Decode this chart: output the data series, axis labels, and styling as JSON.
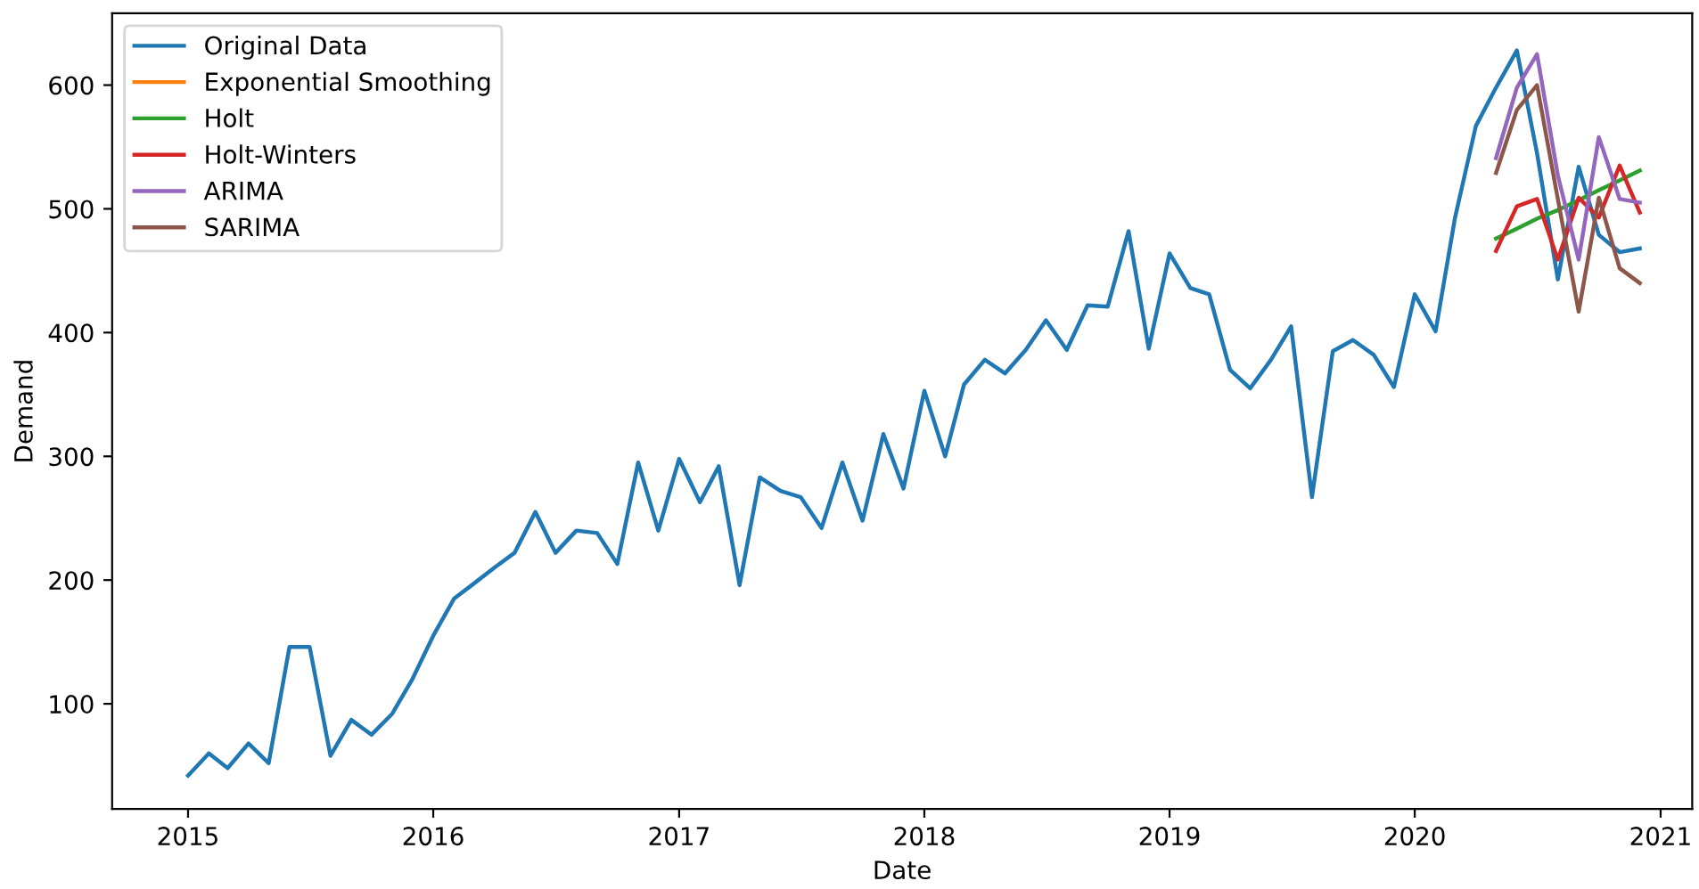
{
  "chart_data": {
    "type": "line",
    "xlabel": "Date",
    "ylabel": "Demand",
    "legend": "top left",
    "grid": false,
    "xlim": [
      "2014-09-10",
      "2021-02-17"
    ],
    "ylim": [
      15,
      658
    ],
    "xticks": [
      {
        "value": "2015",
        "label": "2015"
      },
      {
        "value": "2016",
        "label": "2016"
      },
      {
        "value": "2017",
        "label": "2017"
      },
      {
        "value": "2018",
        "label": "2018"
      },
      {
        "value": "2019",
        "label": "2019"
      },
      {
        "value": "2020",
        "label": "2020"
      },
      {
        "value": "2021",
        "label": "2021"
      }
    ],
    "yticks": [
      100,
      200,
      300,
      400,
      500,
      600
    ],
    "series": [
      {
        "name": "Original Data",
        "color": "#1f77b4",
        "x": [
          "2015-01",
          "2015-02",
          "2015-03",
          "2015-04",
          "2015-05",
          "2015-06",
          "2015-07",
          "2015-08",
          "2015-09",
          "2015-10",
          "2015-11",
          "2015-12",
          "2016-01",
          "2016-02",
          "2016-03",
          "2016-04",
          "2016-05",
          "2016-06",
          "2016-07",
          "2016-08",
          "2016-09",
          "2016-10",
          "2016-11",
          "2016-12",
          "2017-01",
          "2017-02",
          "2017-03",
          "2017-04",
          "2017-05",
          "2017-06",
          "2017-07",
          "2017-08",
          "2017-09",
          "2017-10",
          "2017-11",
          "2017-12",
          "2018-01",
          "2018-02",
          "2018-03",
          "2018-04",
          "2018-05",
          "2018-06",
          "2018-07",
          "2018-08",
          "2018-09",
          "2018-10",
          "2018-11",
          "2018-12",
          "2019-01",
          "2019-02",
          "2019-03",
          "2019-04",
          "2019-05",
          "2019-06",
          "2019-07",
          "2019-08",
          "2019-09",
          "2019-10",
          "2019-11",
          "2019-12",
          "2020-01",
          "2020-02",
          "2020-03",
          "2020-04",
          "2020-05",
          "2020-06",
          "2020-07",
          "2020-08",
          "2020-09",
          "2020-10",
          "2020-11",
          "2020-12"
        ],
        "values": [
          42,
          60,
          48,
          68,
          52,
          146,
          146,
          58,
          87,
          75,
          92,
          120,
          155,
          185,
          197,
          210,
          222,
          255,
          222,
          240,
          238,
          213,
          295,
          240,
          298,
          263,
          292,
          196,
          283,
          272,
          267,
          242,
          295,
          248,
          318,
          274,
          353,
          300,
          358,
          378,
          367,
          386,
          410,
          386,
          422,
          421,
          482,
          387,
          464,
          436,
          431,
          370,
          355,
          378,
          405,
          267,
          385,
          394,
          382,
          356,
          431,
          401,
          493,
          567,
          598,
          628,
          545,
          443,
          534,
          479,
          465,
          468
        ]
      },
      {
        "name": "Exponential Smoothing",
        "color": "#ff7f0e"
      },
      {
        "name": "Holt",
        "color": "#2ca02c",
        "x": [
          "2020-05",
          "2020-06",
          "2020-07",
          "2020-08",
          "2020-09",
          "2020-10",
          "2020-11",
          "2020-12"
        ],
        "values": [
          476,
          484,
          492,
          499,
          507,
          515,
          523,
          531
        ]
      },
      {
        "name": "Holt-Winters",
        "color": "#d62728",
        "x": [
          "2020-05",
          "2020-06",
          "2020-07",
          "2020-08",
          "2020-09",
          "2020-10",
          "2020-11",
          "2020-12"
        ],
        "values": [
          466,
          502,
          508,
          459,
          509,
          493,
          535,
          497
        ]
      },
      {
        "name": "ARIMA",
        "color": "#9467bd",
        "x": [
          "2020-05",
          "2020-06",
          "2020-07",
          "2020-08",
          "2020-09",
          "2020-10",
          "2020-11",
          "2020-12"
        ],
        "values": [
          541,
          598,
          625,
          527,
          459,
          558,
          508,
          505
        ]
      },
      {
        "name": "SARIMA",
        "color": "#8c564b",
        "x": [
          "2020-05",
          "2020-06",
          "2020-07",
          "2020-08",
          "2020-09",
          "2020-10",
          "2020-11",
          "2020-12"
        ],
        "values": [
          529,
          580,
          600,
          508,
          417,
          509,
          452,
          440
        ]
      }
    ]
  }
}
